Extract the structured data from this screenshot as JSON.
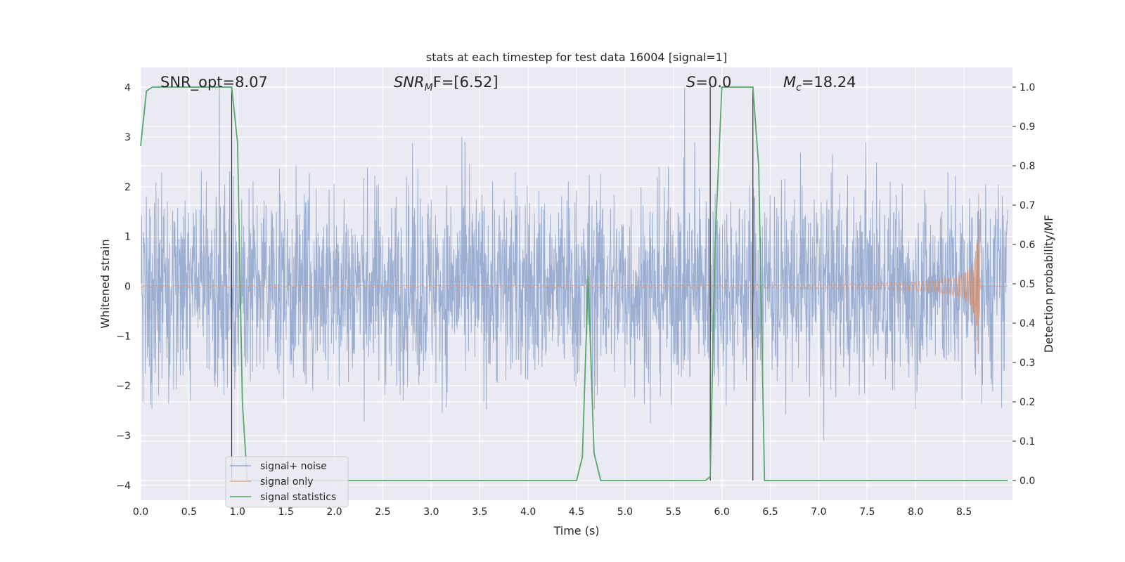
{
  "chart_data": {
    "type": "line",
    "title": "stats at each timestep for test data 16004 [signal=1]",
    "xlabel": "Time (s)",
    "ylabel_left": "Whitened strain",
    "ylabel_right": "Detection probability/MF",
    "xlim": [
      0.0,
      9.0
    ],
    "ylim_left": [
      -4.3,
      4.4
    ],
    "ylim_right": [
      -0.05,
      1.05
    ],
    "x_ticks": [
      "0.0",
      "0.5",
      "1.0",
      "1.5",
      "2.0",
      "2.5",
      "3.0",
      "3.5",
      "4.0",
      "4.5",
      "5.0",
      "5.5",
      "6.0",
      "6.5",
      "7.0",
      "7.5",
      "8.0",
      "8.5"
    ],
    "y_ticks_left": [
      "−4",
      "−3",
      "−2",
      "−1",
      "0",
      "1",
      "2",
      "3",
      "4"
    ],
    "y_ticks_right": [
      "0.0",
      "0.1",
      "0.2",
      "0.3",
      "0.4",
      "0.5",
      "0.6",
      "0.7",
      "0.8",
      "0.9",
      "1.0"
    ],
    "grid": true,
    "legend_placement": "lower-left",
    "annotations": {
      "snr_opt": "SNR_opt=8.07",
      "snr_mf_base": "SNR",
      "snr_mf_sub": "M",
      "snr_mf_rest": "F=[6.52]",
      "s_base": "S",
      "s_rest": "=0.0",
      "mc_base": "M",
      "mc_sub": "c",
      "mc_rest": "=18.24"
    },
    "vertical_lines_x": [
      0.94,
      5.88,
      6.32
    ],
    "series": [
      {
        "name": "signal+ noise",
        "axis": "left",
        "color": "#4c72b0",
        "description_range": [
          -4.0,
          4.0
        ],
        "typical_band": [
          -1.5,
          1.6
        ]
      },
      {
        "name": "signal only",
        "axis": "left",
        "color": "#dd8452",
        "chirp_end_time": 8.65,
        "peak_amplitude": 1.9
      },
      {
        "name": "signal statistics",
        "axis": "right",
        "color": "#55a868",
        "x": [
          0.0,
          0.06,
          0.12,
          0.2,
          0.5,
          0.94,
          1.0,
          1.05,
          1.1,
          1.2,
          1.5,
          2.0,
          2.5,
          3.0,
          3.5,
          4.0,
          4.45,
          4.5,
          4.56,
          4.62,
          4.68,
          4.75,
          5.0,
          5.5,
          5.83,
          5.88,
          5.93,
          6.0,
          6.2,
          6.32,
          6.38,
          6.44,
          6.6,
          7.0,
          7.5,
          8.0,
          8.5,
          8.95
        ],
        "y": [
          0.85,
          0.99,
          1.0,
          1.0,
          1.0,
          1.0,
          0.86,
          0.2,
          0.0,
          0.0,
          0.0,
          0.0,
          0.0,
          0.0,
          0.0,
          0.0,
          0.0,
          0.0,
          0.06,
          0.52,
          0.07,
          0.0,
          0.0,
          0.0,
          0.0,
          0.01,
          0.6,
          1.0,
          1.0,
          1.0,
          0.8,
          0.0,
          0.0,
          0.0,
          0.0,
          0.0,
          0.0,
          0.0
        ]
      }
    ]
  }
}
